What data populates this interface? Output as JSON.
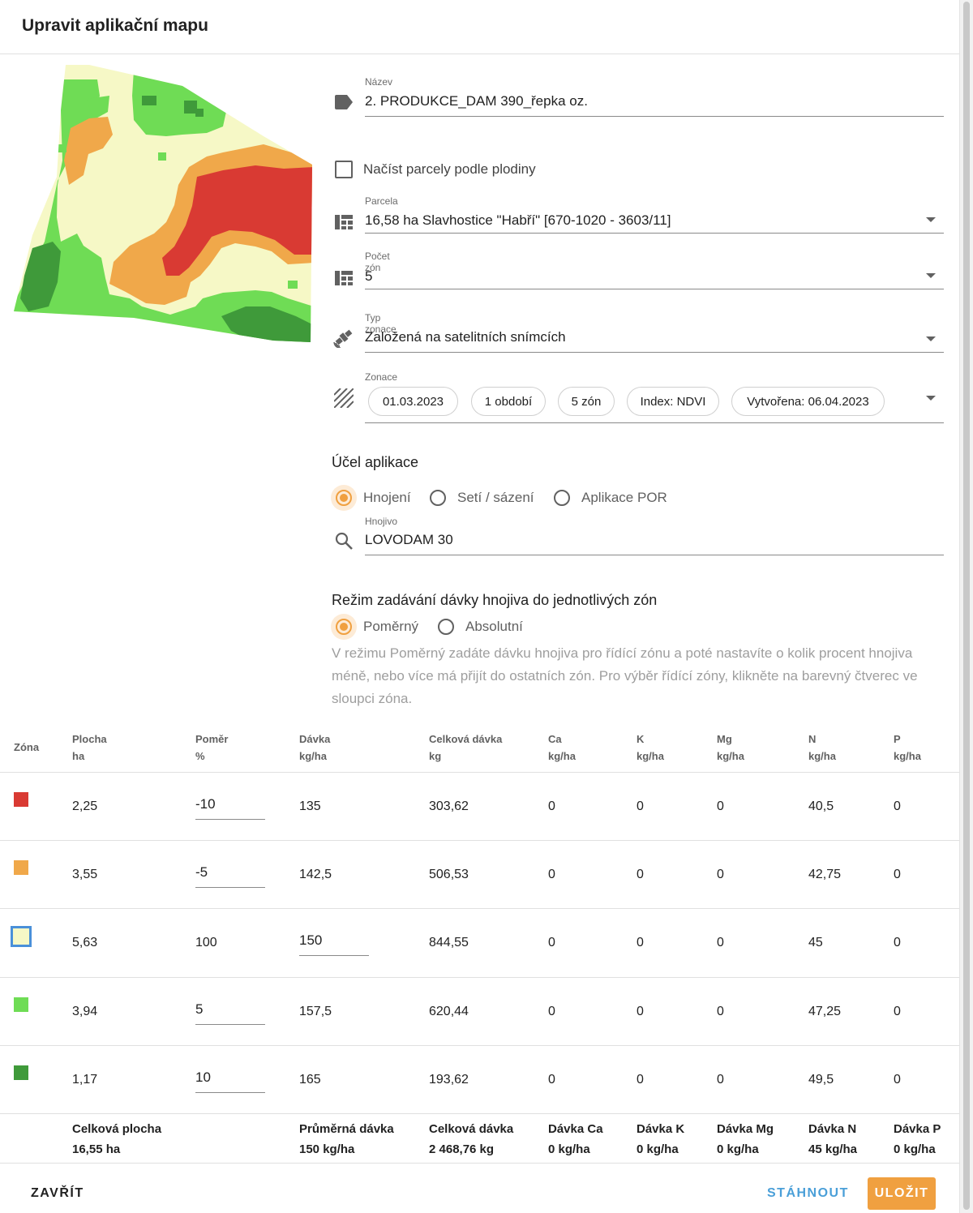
{
  "dialog": {
    "title": "Upravit aplikační mapu"
  },
  "form": {
    "name": {
      "label": "Název",
      "value": "2. PRODUKCE_DAM 390_řepka oz.",
      "icon": "tag-icon"
    },
    "load_by_crop": {
      "label": "Načíst parcely podle plodiny",
      "checked": false
    },
    "parcel": {
      "label": "Parcela",
      "value": "16,58 ha Slavhostice \"Habří\" [670-1020 - 3603/11]",
      "icon": "grid-icon"
    },
    "zone_count": {
      "label": "Počet zón",
      "value": "5",
      "icon": "grid-icon"
    },
    "zoning_type": {
      "label": "Typ zonace",
      "value": "Založená na satelitních snímcích",
      "icon": "satellite-icon"
    },
    "zoning": {
      "label": "Zonace",
      "icon": "hatch-icon",
      "chips": [
        "01.03.2023",
        "1 období",
        "5 zón",
        "Index: NDVI",
        "Vytvořena: 06.04.2023"
      ]
    }
  },
  "purpose": {
    "title": "Účel aplikace",
    "options": [
      "Hnojení",
      "Setí / sázení",
      "Aplikace POR"
    ],
    "selected": "Hnojení",
    "fertilizer": {
      "label": "Hnojivo",
      "value": "LOVODAM 30",
      "icon": "search-icon"
    }
  },
  "dose_mode": {
    "title": "Režim zadávání dávky hnojiva do jednotlivých zón",
    "options": [
      "Poměrný",
      "Absolutní"
    ],
    "selected": "Poměrný",
    "help": "V režimu Poměrný zadáte dávku hnojiva pro řídící zónu a poté nastavíte o kolik procent hnojiva méně, nebo více má přijít do ostatních zón. Pro výběr řídící zóny, klikněte na barevný čtverec ve sloupci zóna."
  },
  "table": {
    "headers": [
      {
        "top": "Zóna",
        "bottom": ""
      },
      {
        "top": "Plocha",
        "bottom": "ha"
      },
      {
        "top": "Poměr",
        "bottom": "%"
      },
      {
        "top": "Dávka",
        "bottom": "kg/ha"
      },
      {
        "top": "Celková dávka",
        "bottom": "kg"
      },
      {
        "top": "Ca",
        "bottom": "kg/ha"
      },
      {
        "top": "K",
        "bottom": "kg/ha"
      },
      {
        "top": "Mg",
        "bottom": "kg/ha"
      },
      {
        "top": "N",
        "bottom": "kg/ha"
      },
      {
        "top": "P",
        "bottom": "kg/ha"
      }
    ],
    "rows": [
      {
        "color": "#d93a33",
        "area": "2,25",
        "ratio": "-10",
        "dose": "135",
        "total": "303,62",
        "ca": "0",
        "k": "0",
        "mg": "0",
        "n": "40,5",
        "p": "0"
      },
      {
        "color": "#f0a84a",
        "area": "3,55",
        "ratio": "-5",
        "dose": "142,5",
        "total": "506,53",
        "ca": "0",
        "k": "0",
        "mg": "0",
        "n": "42,75",
        "p": "0"
      },
      {
        "color": "#f6f8c6",
        "area": "5,63",
        "ratio": "100",
        "dose": "150",
        "total": "844,55",
        "ca": "0",
        "k": "0",
        "mg": "0",
        "n": "45",
        "p": "0",
        "reference": true
      },
      {
        "color": "#6fdc55",
        "area": "3,94",
        "ratio": "5",
        "dose": "157,5",
        "total": "620,44",
        "ca": "0",
        "k": "0",
        "mg": "0",
        "n": "47,25",
        "p": "0"
      },
      {
        "color": "#3f9a3a",
        "area": "1,17",
        "ratio": "10",
        "dose": "165",
        "total": "193,62",
        "ca": "0",
        "k": "0",
        "mg": "0",
        "n": "49,5",
        "p": "0"
      }
    ],
    "footer": [
      {
        "top": "Celková plocha",
        "bottom": "16,55 ha"
      },
      {
        "top": "Průměrná dávka",
        "bottom": "150 kg/ha"
      },
      {
        "top": "Celková dávka",
        "bottom": "2 468,76 kg"
      },
      {
        "top": "Dávka Ca",
        "bottom": "0 kg/ha"
      },
      {
        "top": "Dávka K",
        "bottom": "0 kg/ha"
      },
      {
        "top": "Dávka Mg",
        "bottom": "0 kg/ha"
      },
      {
        "top": "Dávka N",
        "bottom": "45 kg/ha"
      },
      {
        "top": "Dávka P",
        "bottom": "0 kg/ha"
      }
    ]
  },
  "actions": {
    "close": "ZAVŘÍT",
    "download": "STÁHNOUT",
    "save": "ULOŽIT"
  },
  "colors": {
    "accent": "#f0a040",
    "link": "#4a9fd8",
    "zone_red": "#d93a33",
    "zone_orange": "#f0a84a",
    "zone_yellow": "#f6f8c6",
    "zone_light_green": "#6fdc55",
    "zone_dark_green": "#3f9a3a"
  }
}
